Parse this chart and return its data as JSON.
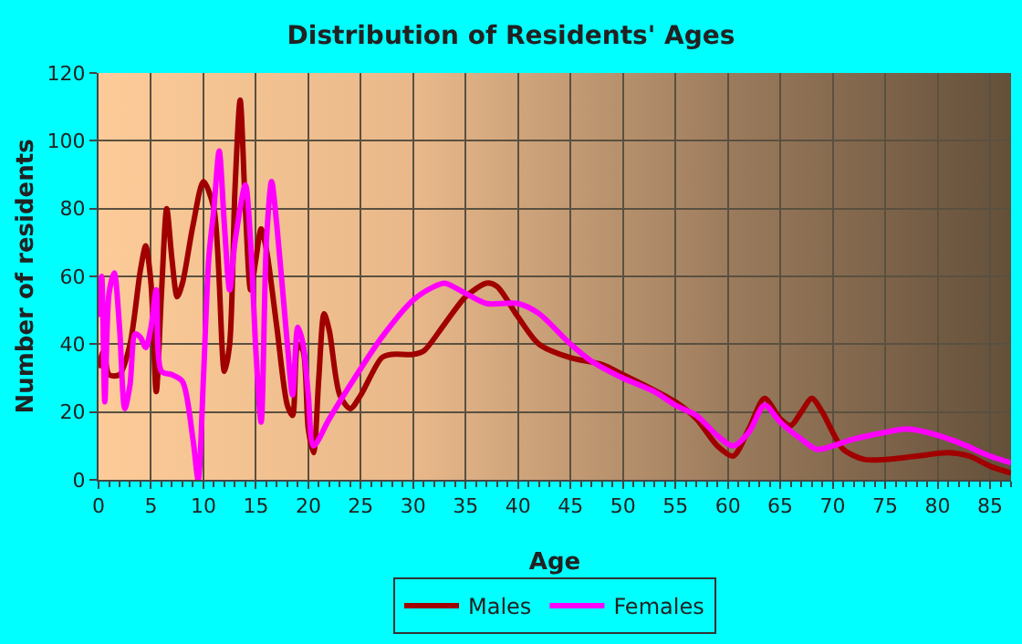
{
  "chart_data": {
    "type": "line",
    "title": "Distribution of Residents' Ages",
    "xlabel": "Age",
    "ylabel": "Number of residents",
    "xlim": [
      0,
      87
    ],
    "xticks": [
      0,
      5,
      10,
      15,
      20,
      25,
      30,
      35,
      40,
      45,
      50,
      55,
      60,
      65,
      70,
      75,
      80,
      85
    ],
    "ylim": [
      0,
      120
    ],
    "yticks": [
      0,
      20,
      40,
      60,
      80,
      100,
      120
    ],
    "grid": true,
    "legend": "bottom",
    "marker": "none",
    "line_style": "solid",
    "series": [
      {
        "name": "Males",
        "color": "#a00000",
        "x": [
          0,
          0.5,
          1,
          2,
          3,
          4,
          4.5,
          5,
          5.5,
          6,
          6.5,
          7,
          7.5,
          8,
          9,
          10,
          11,
          12,
          12.5,
          13,
          13.5,
          14,
          14.5,
          15,
          15.5,
          16,
          17,
          18,
          18.5,
          19,
          19.5,
          20,
          20.5,
          21,
          21.5,
          22,
          23,
          24,
          25,
          27,
          28,
          30,
          31,
          33,
          35,
          37,
          38,
          40,
          42,
          45,
          48,
          50,
          52,
          55,
          57,
          59,
          60.5,
          62,
          63.5,
          65,
          66,
          67,
          68,
          69,
          70,
          71,
          73,
          75,
          78,
          81,
          83,
          85,
          87
        ],
        "values": [
          33,
          38,
          31,
          31,
          40,
          62,
          69,
          58,
          26,
          55,
          80,
          65,
          54,
          58,
          75,
          88,
          80,
          32,
          40,
          85,
          112,
          80,
          56,
          65,
          74,
          68,
          45,
          22,
          19,
          40,
          38,
          15,
          8,
          30,
          49,
          44,
          25,
          21,
          25,
          36,
          37,
          37,
          38,
          46,
          54,
          58,
          57,
          48,
          40,
          36,
          34,
          31,
          28,
          23,
          18,
          10,
          7,
          15,
          24,
          18,
          16,
          20,
          24,
          20,
          14,
          9,
          6,
          6,
          7,
          8,
          7,
          4,
          2
        ]
      },
      {
        "name": "Females",
        "color": "#ff00ff",
        "x": [
          0,
          0.3,
          0.6,
          1,
          1.5,
          2,
          2.5,
          3,
          3.5,
          4,
          4.5,
          5,
          5.5,
          6,
          7,
          8,
          9,
          9.5,
          10,
          10.5,
          11,
          11.5,
          12,
          12.5,
          13,
          14,
          14.5,
          15,
          15.5,
          16,
          16.5,
          17,
          18,
          18.5,
          19,
          19.5,
          20,
          20.5,
          22,
          24,
          27,
          30,
          32,
          33,
          35,
          37,
          40,
          42,
          45,
          47,
          50,
          53,
          55,
          57,
          59,
          60.5,
          62,
          63.5,
          65,
          67,
          68.5,
          70,
          72,
          75,
          77,
          79,
          82,
          85,
          87
        ],
        "values": [
          48,
          60,
          23,
          55,
          61,
          45,
          21,
          28,
          43,
          42,
          39,
          45,
          56,
          32,
          31,
          29,
          12,
          0,
          30,
          65,
          80,
          97,
          75,
          56,
          70,
          87,
          70,
          38,
          17,
          70,
          88,
          75,
          40,
          25,
          45,
          40,
          25,
          10,
          18,
          28,
          42,
          53,
          57,
          58,
          55,
          52,
          52,
          49,
          40,
          35,
          30,
          26,
          22,
          19,
          13,
          10,
          14,
          22,
          17,
          12,
          9,
          10,
          12,
          14,
          15,
          14,
          11,
          7,
          5
        ]
      }
    ]
  }
}
